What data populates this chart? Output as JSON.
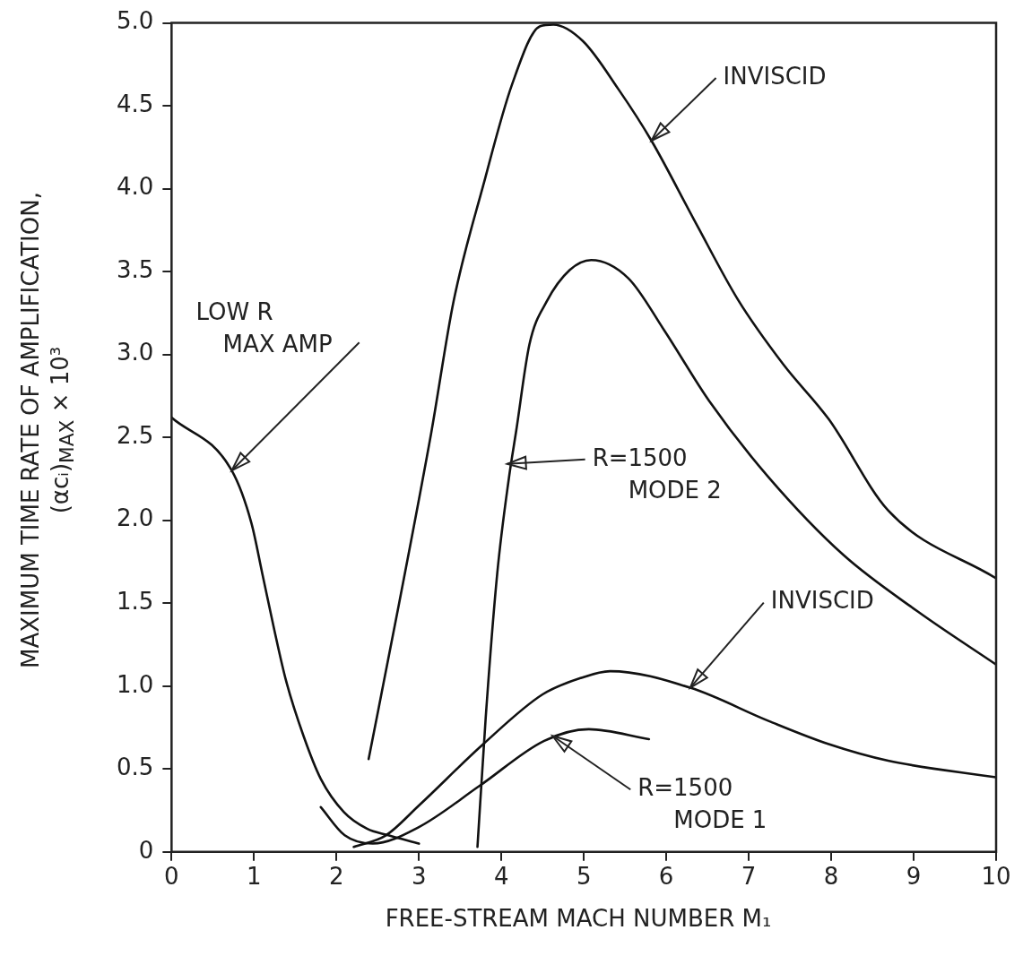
{
  "chart_data": {
    "type": "line",
    "xlabel": "FREE-STREAM MACH NUMBER  M₁",
    "ylabel": "MAXIMUM TIME RATE OF AMPLIFICATION,\n(αcᵢ)$_{MAX}$ × 10³",
    "series": [
      {
        "color": "#111111",
        "x": [
          0,
          0.73,
          0.97,
          1.1,
          1.25,
          1.39,
          1.6,
          1.81,
          2.09,
          2.37,
          2.63,
          3.0
        ],
        "values": [
          2.62,
          2.3,
          1.98,
          1.68,
          1.33,
          1.03,
          0.7,
          0.44,
          0.24,
          0.14,
          0.1,
          0.05
        ]
      },
      {
        "color": "#111111",
        "x": [
          1.81,
          2.1,
          2.44,
          3.0,
          3.74,
          4.52,
          5.06,
          5.79
        ],
        "values": [
          0.27,
          0.1,
          0.05,
          0.15,
          0.4,
          0.67,
          0.74,
          0.68
        ]
      },
      {
        "color": "#111111",
        "x": [
          2.21,
          2.6,
          3.0,
          3.78,
          4.5,
          4.97,
          5.32,
          6.29,
          7.24,
          7.97,
          8.69,
          10
        ],
        "values": [
          0.03,
          0.1,
          0.28,
          0.65,
          0.95,
          1.05,
          1.09,
          0.99,
          0.79,
          0.65,
          0.55,
          0.45
        ]
      },
      {
        "color": "#111111",
        "x": [
          2.39,
          2.76,
          3.15,
          3.42,
          3.78,
          4.13,
          4.47,
          4.63,
          4.99,
          5.42,
          5.82,
          6.34,
          6.87,
          7.42,
          7.97,
          8.69,
          10
        ],
        "values": [
          0.56,
          1.5,
          2.53,
          3.32,
          4.02,
          4.63,
          4.98,
          4.99,
          4.89,
          4.6,
          4.29,
          3.81,
          3.33,
          2.94,
          2.61,
          2.06,
          1.65
        ]
      },
      {
        "color": "#111111",
        "x": [
          3.71,
          3.81,
          3.95,
          4.09,
          4.18,
          4.34,
          4.55,
          4.83,
          5.09,
          5.54,
          5.97,
          6.52,
          7.24,
          8.15,
          9.05,
          10
        ],
        "values": [
          0.03,
          0.81,
          1.68,
          2.25,
          2.54,
          3.06,
          3.32,
          3.51,
          3.57,
          3.46,
          3.15,
          2.72,
          2.26,
          1.79,
          1.45,
          1.13
        ]
      }
    ],
    "annotations": [
      {
        "text": "LOW R\nMAX AMP",
        "x": 0.73,
        "y": 2.3
      },
      {
        "text": "INVISCID",
        "x": 5.82,
        "y": 4.29
      },
      {
        "text": "R=1500\nMODE 2",
        "x": 4.07,
        "y": 2.34
      },
      {
        "text": "INVISCID",
        "x": 6.29,
        "y": 0.99
      },
      {
        "text": "R=1500\nMODE 1",
        "x": 4.62,
        "y": 0.7
      }
    ],
    "xlim": [
      0,
      10
    ],
    "xticks": [
      0,
      1,
      2,
      3,
      4,
      5,
      6,
      7,
      8,
      9,
      10
    ],
    "ylim": [
      0,
      5
    ],
    "yticks": [
      0,
      0.5,
      {
        "value": 1,
        "label": "1.0"
      },
      1.5,
      {
        "value": 2,
        "label": "2.0"
      },
      2.5,
      {
        "value": 3,
        "label": "3.0"
      },
      3.5,
      {
        "value": 4,
        "label": "4.0"
      },
      4.5,
      {
        "value": 5,
        "label": "5.0"
      }
    ],
    "marker": "none",
    "line_style": "solid",
    "grid": false,
    "legend": false
  }
}
